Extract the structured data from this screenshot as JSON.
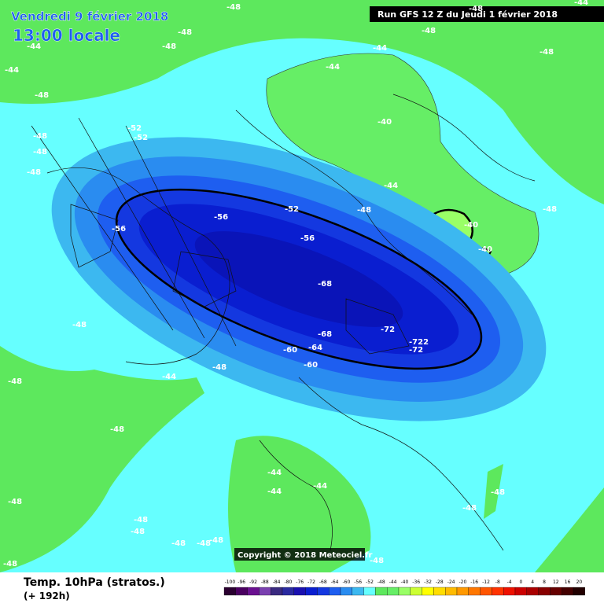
{
  "header": {
    "date": "Vendredi 9 février 2018",
    "time": "13:00 locale",
    "run": "Run GFS 12 Z du Jeudi 1 février 2018"
  },
  "copyright": "Copyright © 2018 Meteociel.fr",
  "footer": {
    "title": "Temp. 10hPa (stratos.)",
    "lead": "(+ 192h)"
  },
  "legend": {
    "values": [
      -100,
      -96,
      -92,
      -88,
      -84,
      -80,
      -76,
      -72,
      -68,
      -64,
      -60,
      -56,
      -52,
      -48,
      -44,
      -40,
      -36,
      -32,
      -28,
      -24,
      -20,
      -16,
      -12,
      -8,
      -4,
      0,
      4,
      8,
      12,
      16,
      20
    ],
    "colors": [
      "#2a0030",
      "#4a0060",
      "#6a1090",
      "#7a40b0",
      "#3a2a80",
      "#2a2aa0",
      "#1a10b0",
      "#0a1ed0",
      "#1438e0",
      "#1e5ef0",
      "#2a8cf0",
      "#3cb8f0",
      "#66ffff",
      "#5de85d",
      "#66ee66",
      "#99ff66",
      "#ccff33",
      "#ffff00",
      "#ffdd00",
      "#ffbb00",
      "#ff9900",
      "#ff7700",
      "#ff5500",
      "#ff3300",
      "#ee1100",
      "#cc0000",
      "#aa0000",
      "#880000",
      "#660000",
      "#440000",
      "#220000"
    ]
  },
  "contour_labels": [
    "-48",
    "-48",
    "-48",
    "-44",
    "-44",
    "-48",
    "-48",
    "-52",
    "-52",
    "-48",
    "-48",
    "-44",
    "-48",
    "-48",
    "-48",
    "-44",
    "-40",
    "-44",
    "-48",
    "-40",
    "-40",
    "-52",
    "-48",
    "-56",
    "-56",
    "-56",
    "-68",
    "-68",
    "-72",
    "-722",
    "-72",
    "-64",
    "-60",
    "-60",
    "-48",
    "-48",
    "-44",
    "-48",
    "-48",
    "-44",
    "-44",
    "-44",
    "-48",
    "-48",
    "-48",
    "-48",
    "-48",
    "-48",
    "-48",
    "-48",
    "-48",
    "-48",
    "-44"
  ]
}
